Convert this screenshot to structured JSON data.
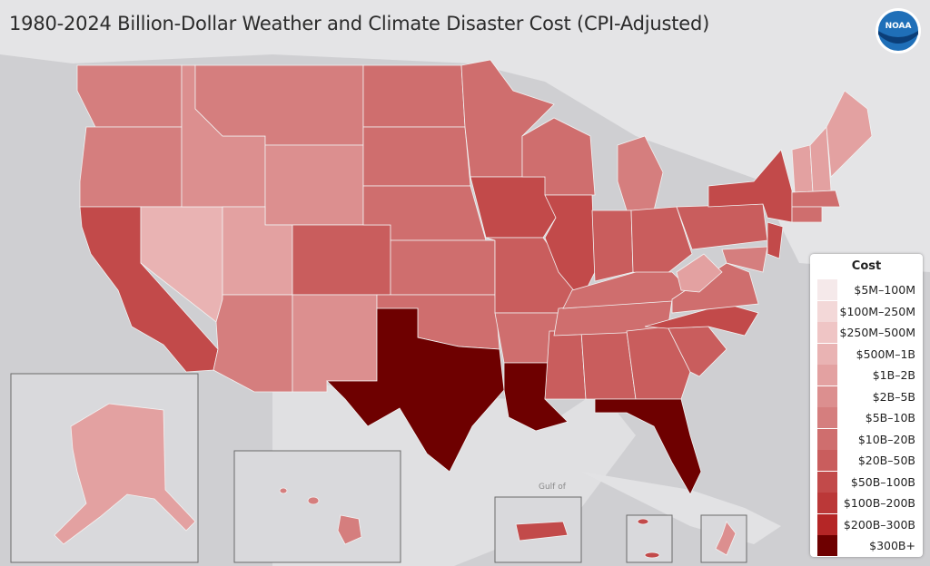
{
  "title": "1980-2024 Billion-Dollar Weather and Climate Disaster Cost (CPI-Adjusted)",
  "logo": {
    "name": "noaa-logo",
    "text": "NOAA"
  },
  "map_label": "Gulf of",
  "legend": {
    "title": "Cost",
    "items": [
      {
        "label": "$5M–100M",
        "color": "#f5e9ea"
      },
      {
        "label": "$100M–250M",
        "color": "#f3d8d8"
      },
      {
        "label": "$250M–500M",
        "color": "#efc5c5"
      },
      {
        "label": "$500M–1B",
        "color": "#e9b3b3"
      },
      {
        "label": "$1B–2B",
        "color": "#e3a1a1"
      },
      {
        "label": "$2B–5B",
        "color": "#dc8f8f"
      },
      {
        "label": "$5B–10B",
        "color": "#d57e7e"
      },
      {
        "label": "$10B–20B",
        "color": "#cf6e6e"
      },
      {
        "label": "$20B–50B",
        "color": "#c95d5d"
      },
      {
        "label": "$50B–100B",
        "color": "#c24a4a"
      },
      {
        "label": "$100B–200B",
        "color": "#bb3838"
      },
      {
        "label": "$200B–300B",
        "color": "#b52626"
      },
      {
        "label": "$300B+",
        "color": "#6e0000"
      }
    ]
  },
  "colors": {
    "background": "#cfcfcf",
    "land": "#e4e4e6",
    "water": "#cfcfd2",
    "inset": "#d9d9dc"
  }
}
